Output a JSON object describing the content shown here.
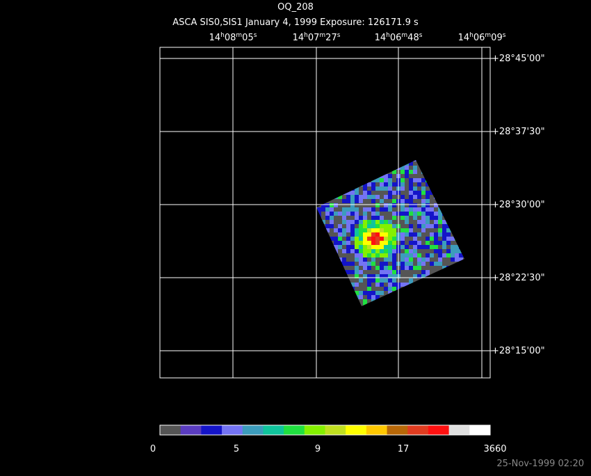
{
  "header": {
    "title": "OQ_208",
    "subtitle": "ASCA SIS0,SIS1 January 4, 1999 Exposure: 126171.9 s"
  },
  "ra_labels": [
    [
      "14",
      "h",
      "08",
      "m",
      "05",
      "s"
    ],
    [
      "14",
      "h",
      "07",
      "m",
      "27",
      "s"
    ],
    [
      "14",
      "h",
      "06",
      "m",
      "48",
      "s"
    ],
    [
      "14",
      "h",
      "06",
      "m",
      "09",
      "s"
    ]
  ],
  "dec_labels": [
    "+28°45'00\"",
    "+28°37'30\"",
    "+28°30'00\"",
    "+28°22'30\"",
    "+28°15'00\""
  ],
  "colorbar": {
    "colors": [
      "#555555",
      "#5a3cc0",
      "#1414c8",
      "#7474f4",
      "#3c9cbc",
      "#10c49c",
      "#20e040",
      "#84f000",
      "#c0e020",
      "#ffff00",
      "#ffc800",
      "#b86808",
      "#e03c20",
      "#ff1010",
      "#e0e0e0",
      "#ffffff"
    ],
    "labels": [
      "0",
      "5",
      "9",
      "17",
      "3660"
    ]
  },
  "footer": {
    "timestamp": "25-Nov-1999 02:20"
  }
}
